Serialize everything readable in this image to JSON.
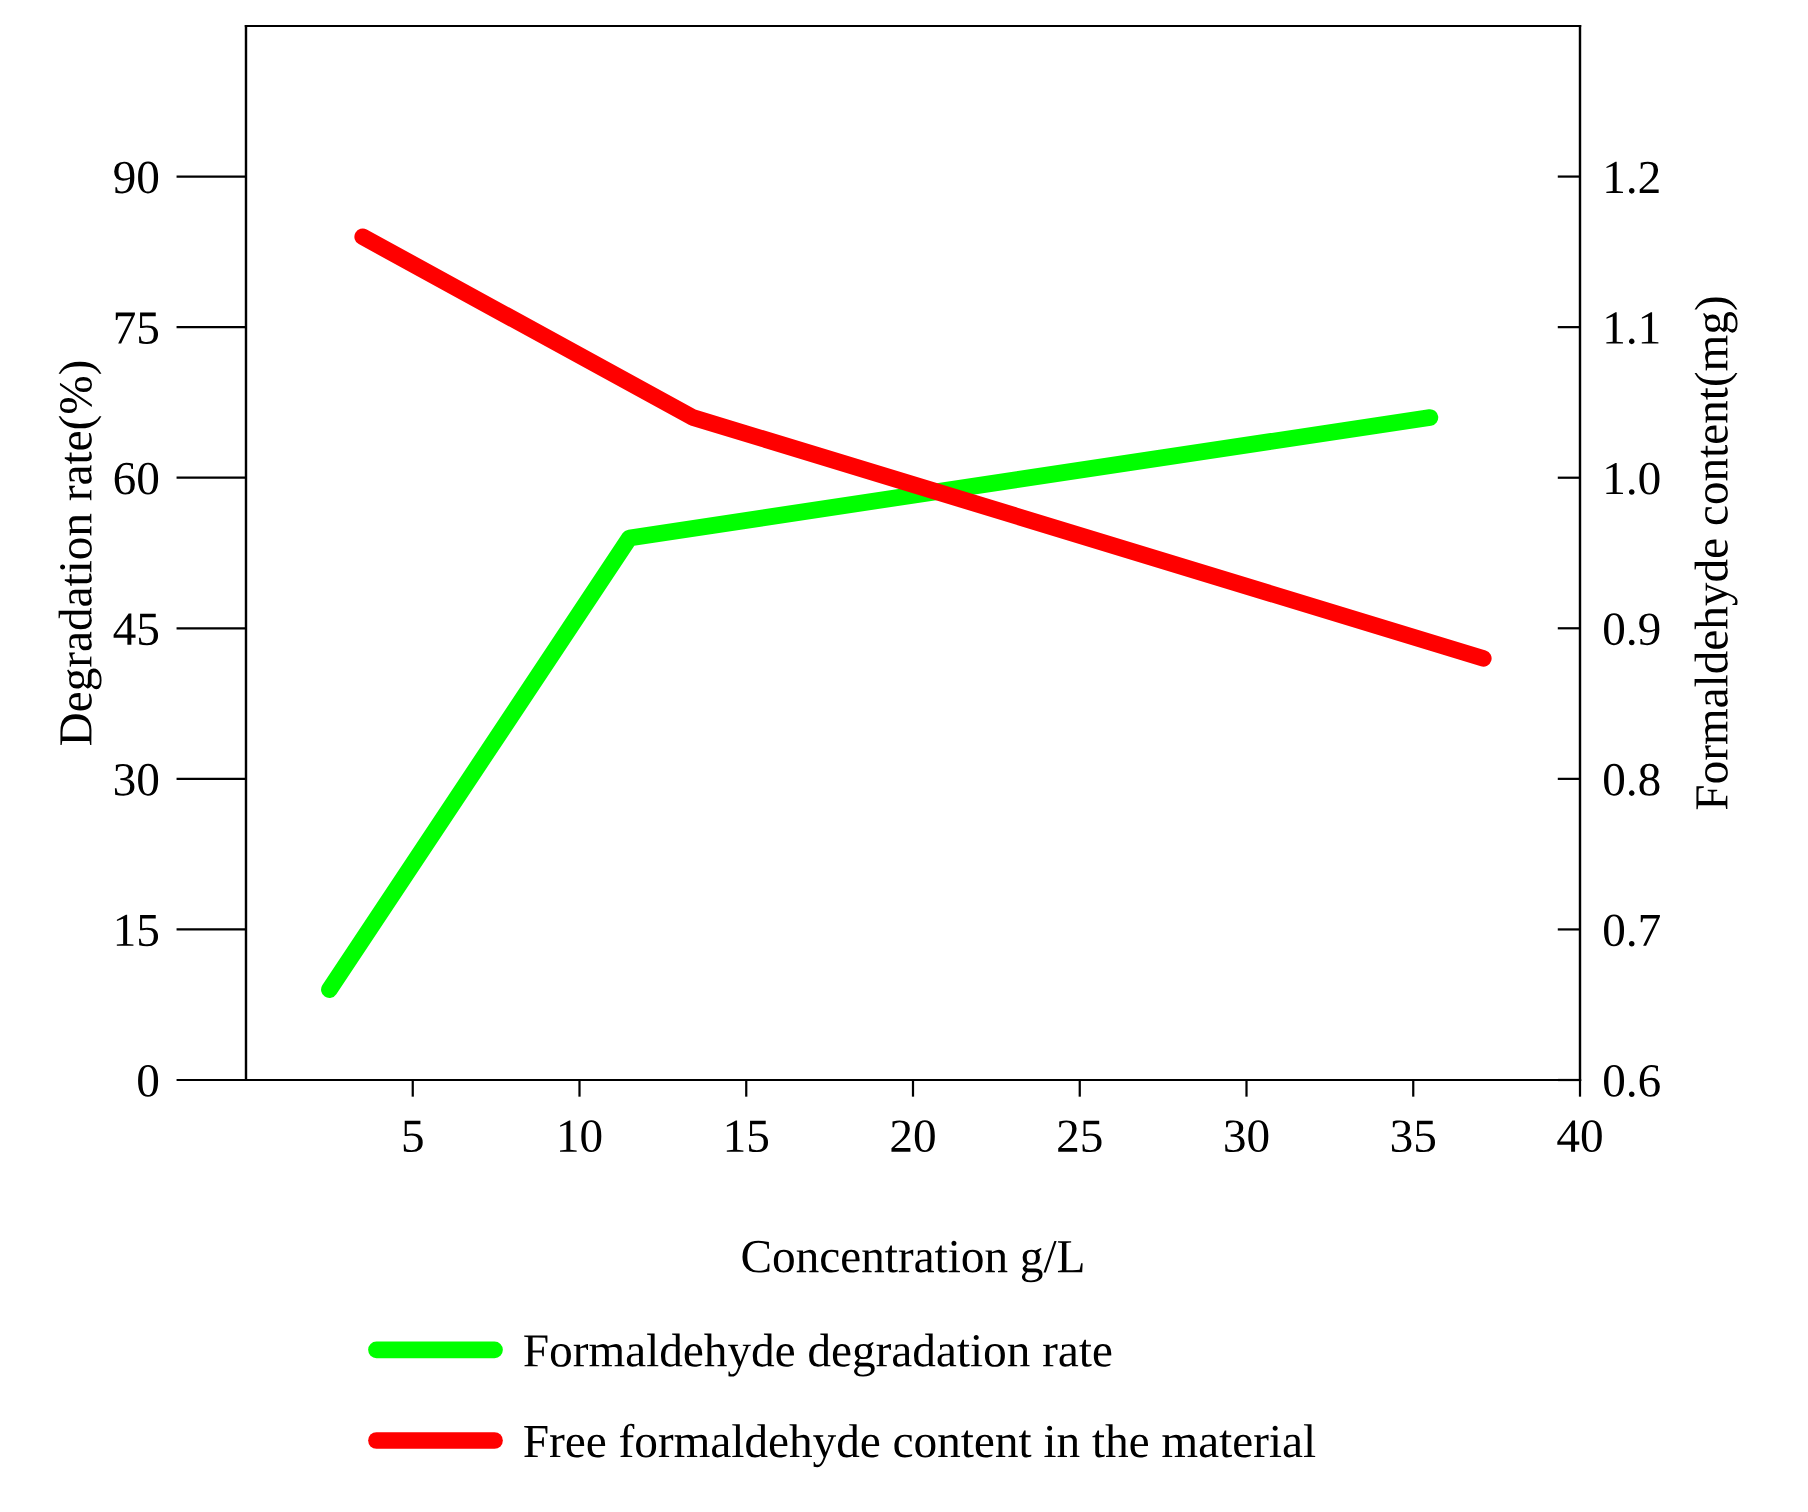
{
  "chart_data": {
    "type": "line",
    "xlabel": "Concentration g/L",
    "ylabel": "Degradation rate(%)",
    "y2label": "Formaldehyde content(mg)",
    "xlim": [
      0,
      40
    ],
    "xticks": [
      5,
      10,
      15,
      20,
      25,
      30,
      35,
      40
    ],
    "ylim": [
      0,
      105
    ],
    "yticks": [
      0,
      15,
      30,
      45,
      60,
      75,
      90
    ],
    "y2lim": [
      0.6,
      1.3
    ],
    "y2ticks": [
      0.6,
      0.7,
      0.8,
      0.9,
      {
        "value": 1,
        "label": "1.0"
      },
      1.1,
      1.2
    ],
    "grid": false,
    "legend": "bottom",
    "marker": "none",
    "line_style": "solid",
    "series": [
      {
        "name": "Formaldehyde degradation rate",
        "color": "#00ff00",
        "x": [
          2.5,
          11.5,
          35.5
        ],
        "values": [
          9,
          54,
          66
        ]
      },
      {
        "name": "Free formaldehyde content in the material",
        "color": "#ff0000",
        "axis": "y2",
        "x": [
          3.5,
          13.4,
          37.1
        ],
        "values": [
          1.16,
          1.04,
          0.88
        ]
      }
    ]
  }
}
